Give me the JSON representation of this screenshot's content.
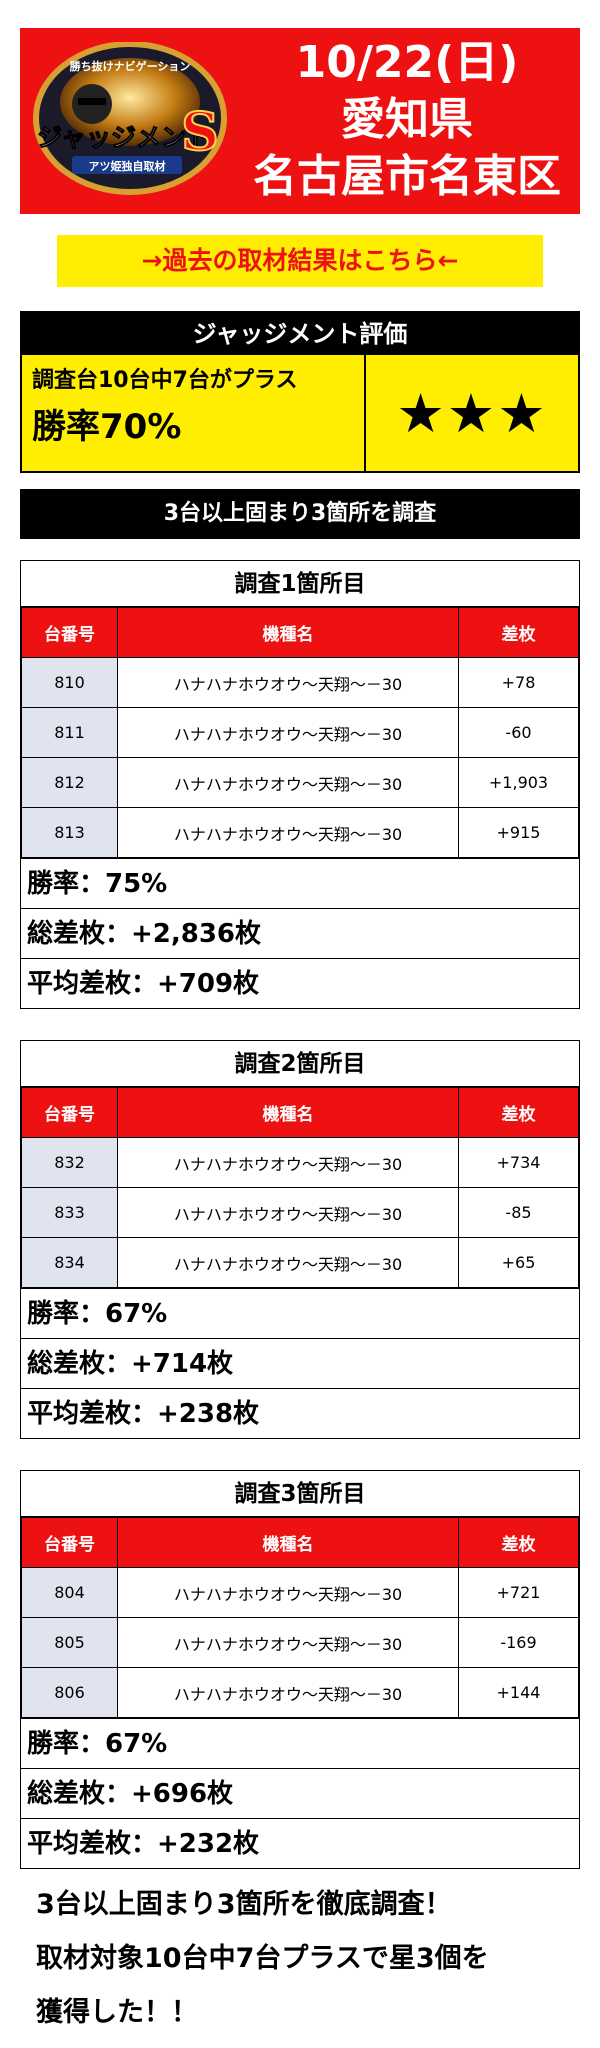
{
  "header": {
    "date": "10/22(日)",
    "prefecture": "愛知県",
    "city": "名古屋市名東区",
    "logo": {
      "tagline": "勝ち抜けナビゲーション",
      "name": "ジャッジメント",
      "letter": "S",
      "subtitle": "アツ姫独自取材"
    }
  },
  "past_link": "→過去の取材結果はこちら←",
  "judgment": {
    "title": "ジャッジメント評価",
    "summary": "調査台10台中7台がプラス",
    "win_rate": "勝率70%",
    "stars": "★★★"
  },
  "survey_bar": "3台以上固まり3箇所を調査",
  "columns": {
    "num": "台番号",
    "name": "機種名",
    "diff": "差枚"
  },
  "blocks": [
    {
      "title": "調査1箇所目",
      "rows": [
        {
          "num": "810",
          "name": "ハナハナホウオウ～天翔～－30",
          "diff": "+78"
        },
        {
          "num": "811",
          "name": "ハナハナホウオウ～天翔～－30",
          "diff": "-60"
        },
        {
          "num": "812",
          "name": "ハナハナホウオウ～天翔～－30",
          "diff": "+1,903"
        },
        {
          "num": "813",
          "name": "ハナハナホウオウ～天翔～－30",
          "diff": "+915"
        }
      ],
      "win_rate": "勝率：75%",
      "total": "総差枚：+2,836枚",
      "average": "平均差枚：+709枚"
    },
    {
      "title": "調査2箇所目",
      "rows": [
        {
          "num": "832",
          "name": "ハナハナホウオウ～天翔～－30",
          "diff": "+734"
        },
        {
          "num": "833",
          "name": "ハナハナホウオウ～天翔～－30",
          "diff": "-85"
        },
        {
          "num": "834",
          "name": "ハナハナホウオウ～天翔～－30",
          "diff": "+65"
        }
      ],
      "win_rate": "勝率：67%",
      "total": "総差枚：+714枚",
      "average": "平均差枚：+238枚"
    },
    {
      "title": "調査3箇所目",
      "rows": [
        {
          "num": "804",
          "name": "ハナハナホウオウ～天翔～－30",
          "diff": "+721"
        },
        {
          "num": "805",
          "name": "ハナハナホウオウ～天翔～－30",
          "diff": "-169"
        },
        {
          "num": "806",
          "name": "ハナハナホウオウ～天翔～－30",
          "diff": "+144"
        }
      ],
      "win_rate": "勝率：67%",
      "total": "総差枚：+696枚",
      "average": "平均差枚：+232枚"
    }
  ],
  "footer": {
    "line1": "3台以上固まり3箇所を徹底調査！",
    "line2": "取材対象10台中7台プラスで星3個を",
    "line3": "獲得した！！"
  },
  "colors": {
    "red": "#ee1111",
    "yellow": "#ffee00",
    "num_bg": "#dfe4ef"
  }
}
